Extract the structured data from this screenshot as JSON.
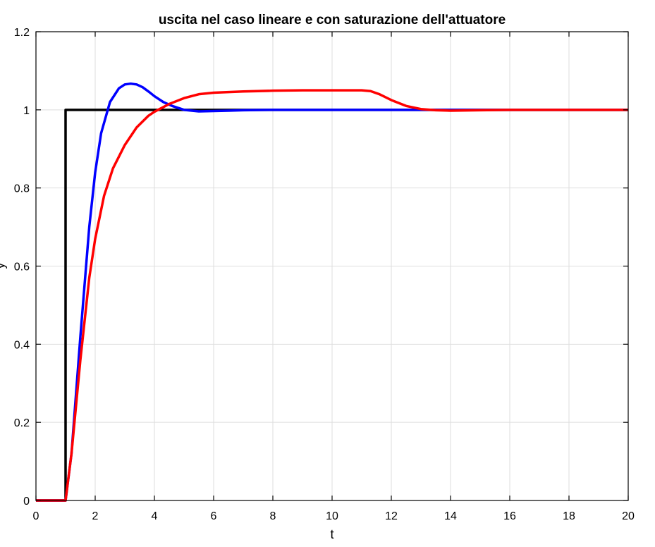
{
  "chart_data": {
    "type": "line",
    "title": "uscita nel caso lineare e con saturazione dell'attuatore",
    "xlabel": "t",
    "ylabel": "y",
    "xlim": [
      0,
      20
    ],
    "ylim": [
      0,
      1.2
    ],
    "xticks": [
      0,
      2,
      4,
      6,
      8,
      10,
      12,
      14,
      16,
      18,
      20
    ],
    "yticks": [
      0,
      0.2,
      0.4,
      0.6,
      0.8,
      1,
      1.2
    ],
    "xtick_labels": [
      "0",
      "2",
      "4",
      "6",
      "8",
      "10",
      "12",
      "14",
      "16",
      "18",
      "20"
    ],
    "ytick_labels": [
      "0",
      "0.2",
      "0.4",
      "0.6",
      "0.8",
      "1",
      "1.2"
    ],
    "grid": true,
    "series": [
      {
        "color": "#000000",
        "x": [
          0,
          1,
          1,
          20
        ],
        "y": [
          0,
          0,
          1,
          1
        ]
      },
      {
        "color": "#0000ff",
        "x": [
          0,
          1,
          1.2,
          1.5,
          1.8,
          2.0,
          2.2,
          2.5,
          2.8,
          3.0,
          3.2,
          3.4,
          3.6,
          3.8,
          4.0,
          4.3,
          4.6,
          5.0,
          5.5,
          6.0,
          6.5,
          7.0,
          8.0,
          9.0,
          10.0,
          12.0,
          15.0,
          20.0
        ],
        "y": [
          0,
          0,
          0.12,
          0.42,
          0.7,
          0.84,
          0.94,
          1.02,
          1.055,
          1.065,
          1.067,
          1.065,
          1.058,
          1.047,
          1.035,
          1.02,
          1.01,
          1.0,
          0.996,
          0.997,
          0.998,
          0.999,
          1.0,
          1.0,
          1.0,
          1.0,
          1.0,
          1.0
        ]
      },
      {
        "color": "#ff0000",
        "x": [
          0,
          1,
          1.2,
          1.5,
          1.8,
          2.0,
          2.3,
          2.6,
          3.0,
          3.4,
          3.8,
          4.0,
          4.5,
          5.0,
          5.5,
          6.0,
          7.0,
          8.0,
          9.0,
          10.0,
          11.0,
          11.3,
          11.6,
          12.0,
          12.5,
          13.0,
          13.5,
          14.0,
          15.0,
          16.0,
          18.0,
          20.0
        ],
        "y": [
          0,
          0,
          0.12,
          0.36,
          0.57,
          0.67,
          0.78,
          0.85,
          0.91,
          0.955,
          0.985,
          0.995,
          1.015,
          1.03,
          1.04,
          1.044,
          1.047,
          1.049,
          1.05,
          1.05,
          1.05,
          1.048,
          1.04,
          1.025,
          1.01,
          1.002,
          0.999,
          0.998,
          0.999,
          1.0,
          1.0,
          1.0
        ]
      }
    ]
  }
}
